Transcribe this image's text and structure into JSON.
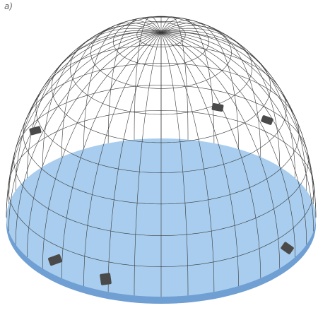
{
  "label": "a)"
}
